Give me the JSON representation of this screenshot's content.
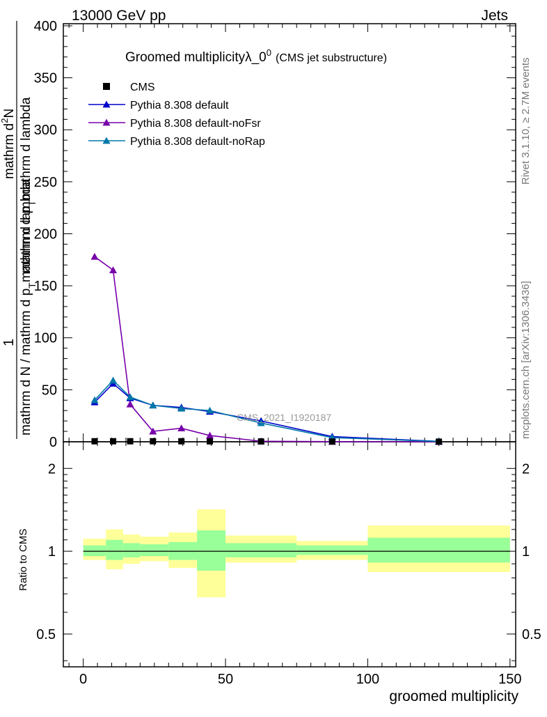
{
  "header": {
    "left": "13000 GeV pp",
    "right": "Jets"
  },
  "side_labels": {
    "rivet": "Rivet 3.1.10, ≥ 2.7M events",
    "mcplots": "mcplots.cern.ch [arXiv:1306.3436]"
  },
  "watermark": "CMS_2021_I1920187",
  "chart_data": {
    "type": "line",
    "title": "Groomed multiplicityλ_0",
    "title_superscript": "0",
    "subtitle": "(CMS jet substructure)",
    "xlabel": "groomed multiplicity",
    "ylabel": {
      "numerator": "1",
      "denominator": "mathrm d N / mathrm d p",
      "den_sub": "T",
      "den_rest": "mathrm d lambda",
      "outer_num": "mathrm d",
      "outer_num_sup": "2",
      "outer_num_rest": "N",
      "outer_den": "mathrm d p",
      "outer_den_sub": "T",
      "outer_den_rest": "mathrm d lambda"
    },
    "ratio_ylabel": "Ratio to CMS",
    "xlim": [
      -7,
      152
    ],
    "ylim": [
      0,
      402
    ],
    "ratio_ylim": [
      0.38,
      2.5
    ],
    "x_ticks": [
      "0",
      "50",
      "100",
      "150"
    ],
    "y_ticks": [
      "0",
      "50",
      "100",
      "150",
      "200",
      "250",
      "300",
      "350",
      "400"
    ],
    "ratio_ticks": [
      "0.5",
      "1",
      "2"
    ],
    "legend": [
      {
        "name": "CMS",
        "marker": "square",
        "color": "#000000"
      },
      {
        "name": "Pythia 8.308 default",
        "marker": "triangle",
        "color": "#0000cc"
      },
      {
        "name": "Pythia 8.308 default-noFsr",
        "marker": "triangle",
        "color": "#7700aa"
      },
      {
        "name": "Pythia 8.308 default-noRap",
        "marker": "triangle",
        "color": "#0077aa"
      }
    ],
    "x": [
      4,
      10.5,
      16.5,
      24.5,
      34.5,
      44.5,
      62.5,
      87.5,
      125
    ],
    "bin_edges": [
      0,
      8,
      14,
      20,
      30,
      40,
      50,
      75,
      100,
      150
    ],
    "series": [
      {
        "name": "CMS",
        "values": [
          0.5,
          0.5,
          0.5,
          0.5,
          0.5,
          0.4,
          0.3,
          0.2,
          0.1
        ],
        "color": "#000000",
        "marker": "square"
      },
      {
        "name": "Pythia 8.308 default",
        "values": [
          38,
          56,
          42,
          35,
          33,
          29,
          20,
          5,
          0.4
        ],
        "color": "#0000cc",
        "marker": "triangle"
      },
      {
        "name": "Pythia 8.308 default-noFsr",
        "values": [
          178,
          165,
          36,
          10,
          13,
          6,
          0.5,
          0.1,
          0.05
        ],
        "color": "#7700aa",
        "marker": "triangle"
      },
      {
        "name": "Pythia 8.308 default-noRap",
        "values": [
          40,
          59,
          43,
          35,
          32,
          30,
          18,
          4,
          0.3
        ],
        "color": "#0077aa",
        "marker": "triangle"
      }
    ],
    "ratio_bands": {
      "stat_lo": [
        0.96,
        0.93,
        0.95,
        0.96,
        0.93,
        0.85,
        0.95,
        0.97,
        0.91
      ],
      "stat_hi": [
        1.05,
        1.1,
        1.07,
        1.06,
        1.08,
        1.19,
        1.07,
        1.05,
        1.12
      ],
      "tot_lo": [
        0.93,
        0.86,
        0.9,
        0.92,
        0.87,
        0.68,
        0.91,
        0.93,
        0.84
      ],
      "tot_hi": [
        1.11,
        1.2,
        1.15,
        1.13,
        1.17,
        1.42,
        1.14,
        1.09,
        1.24
      ],
      "stat_color": "#99ff99",
      "tot_color": "#ffff99"
    }
  }
}
